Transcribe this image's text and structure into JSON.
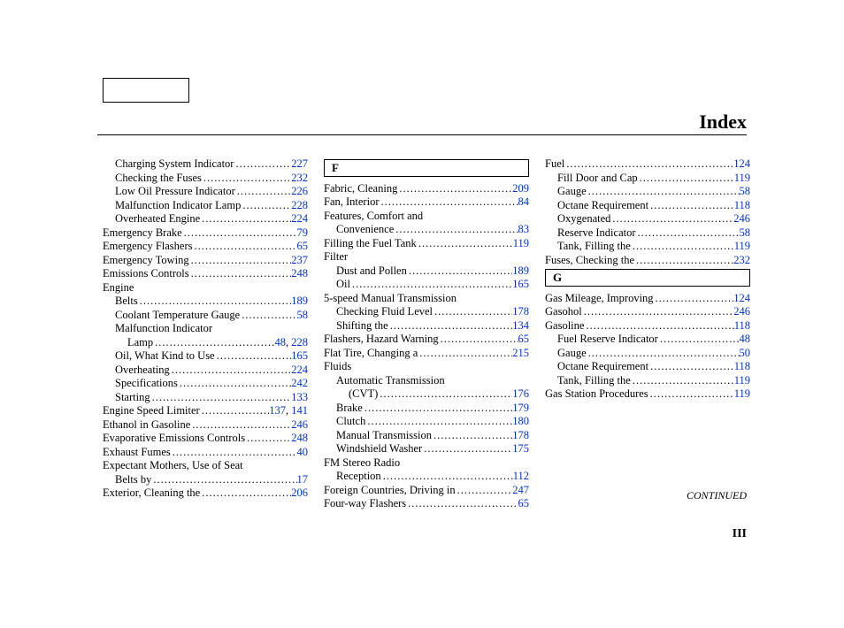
{
  "title": "Index",
  "continued": "CONTINUED",
  "page_number": "III",
  "colors": {
    "link": "#0033cc",
    "text": "#000000",
    "background": "#ffffff"
  },
  "columns": [
    {
      "items": [
        {
          "type": "entry",
          "indent": 1,
          "label": "Charging System Indicator",
          "pages": [
            "227"
          ]
        },
        {
          "type": "entry",
          "indent": 1,
          "label": "Checking the Fuses",
          "pages": [
            "232"
          ]
        },
        {
          "type": "entry",
          "indent": 1,
          "label": "Low Oil Pressure Indicator",
          "pages": [
            "226"
          ]
        },
        {
          "type": "entry",
          "indent": 1,
          "label": "Malfunction Indicator Lamp",
          "pages": [
            "228"
          ]
        },
        {
          "type": "entry",
          "indent": 1,
          "label": "Overheated Engine",
          "pages": [
            "224"
          ]
        },
        {
          "type": "entry",
          "indent": 0,
          "label": "Emergency Brake",
          "pages": [
            "79"
          ]
        },
        {
          "type": "entry",
          "indent": 0,
          "label": "Emergency Flashers",
          "pages": [
            "65"
          ]
        },
        {
          "type": "entry",
          "indent": 0,
          "label": "Emergency Towing",
          "pages": [
            "237"
          ]
        },
        {
          "type": "entry",
          "indent": 0,
          "label": "Emissions Controls",
          "pages": [
            "248"
          ]
        },
        {
          "type": "heading",
          "indent": 0,
          "label": "Engine"
        },
        {
          "type": "entry",
          "indent": 1,
          "label": "Belts",
          "pages": [
            "189"
          ]
        },
        {
          "type": "entry",
          "indent": 1,
          "label": "Coolant Temperature Gauge",
          "pages": [
            "58"
          ]
        },
        {
          "type": "heading",
          "indent": 1,
          "label": "Malfunction Indicator"
        },
        {
          "type": "entry",
          "indent": 2,
          "label": "Lamp",
          "pages": [
            "48",
            "228"
          ]
        },
        {
          "type": "entry",
          "indent": 1,
          "label": "Oil, What Kind to Use",
          "pages": [
            "165"
          ]
        },
        {
          "type": "entry",
          "indent": 1,
          "label": "Overheating",
          "pages": [
            "224"
          ]
        },
        {
          "type": "entry",
          "indent": 1,
          "label": "Specifications",
          "pages": [
            "242"
          ]
        },
        {
          "type": "entry",
          "indent": 1,
          "label": "Starting",
          "pages": [
            "133"
          ]
        },
        {
          "type": "entry",
          "indent": 0,
          "label": "Engine Speed Limiter",
          "pages": [
            "137",
            "141"
          ]
        },
        {
          "type": "entry",
          "indent": 0,
          "label": "Ethanol in Gasoline",
          "pages": [
            "246"
          ]
        },
        {
          "type": "entry",
          "indent": 0,
          "label": "Evaporative Emissions Controls",
          "pages": [
            "248"
          ]
        },
        {
          "type": "entry",
          "indent": 0,
          "label": "Exhaust Fumes",
          "pages": [
            "40"
          ]
        },
        {
          "type": "heading",
          "indent": 0,
          "label": "Expectant Mothers, Use of Seat"
        },
        {
          "type": "entry",
          "indent": 1,
          "label": "Belts by",
          "pages": [
            "17"
          ]
        },
        {
          "type": "entry",
          "indent": 0,
          "label": "Exterior, Cleaning the",
          "pages": [
            "206"
          ]
        }
      ]
    },
    {
      "items": [
        {
          "type": "letter",
          "label": "F"
        },
        {
          "type": "entry",
          "indent": 0,
          "label": "Fabric, Cleaning",
          "pages": [
            "209"
          ]
        },
        {
          "type": "entry",
          "indent": 0,
          "label": "Fan, Interior",
          "pages": [
            "84"
          ]
        },
        {
          "type": "heading",
          "indent": 0,
          "label": "Features, Comfort and"
        },
        {
          "type": "entry",
          "indent": 1,
          "label": "Convenience",
          "pages": [
            "83"
          ]
        },
        {
          "type": "entry",
          "indent": 0,
          "label": "Filling the Fuel Tank",
          "pages": [
            "119"
          ]
        },
        {
          "type": "heading",
          "indent": 0,
          "label": "Filter"
        },
        {
          "type": "entry",
          "indent": 1,
          "label": "Dust and Pollen",
          "pages": [
            "189"
          ]
        },
        {
          "type": "entry",
          "indent": 1,
          "label": "Oil",
          "pages": [
            "165"
          ]
        },
        {
          "type": "heading",
          "indent": 0,
          "label": "5-speed Manual Transmission"
        },
        {
          "type": "entry",
          "indent": 1,
          "label": "Checking Fluid Level",
          "pages": [
            "178"
          ]
        },
        {
          "type": "entry",
          "indent": 1,
          "label": "Shifting the",
          "pages": [
            "134"
          ]
        },
        {
          "type": "entry",
          "indent": 0,
          "label": "Flashers, Hazard Warning",
          "pages": [
            "65"
          ]
        },
        {
          "type": "entry",
          "indent": 0,
          "label": "Flat Tire, Changing a",
          "pages": [
            "215"
          ]
        },
        {
          "type": "heading",
          "indent": 0,
          "label": "Fluids"
        },
        {
          "type": "heading",
          "indent": 1,
          "label": "Automatic Transmission"
        },
        {
          "type": "entry",
          "indent": 2,
          "label": "(CVT)",
          "pages": [
            "176"
          ]
        },
        {
          "type": "entry",
          "indent": 1,
          "label": "Brake",
          "pages": [
            "179"
          ]
        },
        {
          "type": "entry",
          "indent": 1,
          "label": "Clutch",
          "pages": [
            "180"
          ]
        },
        {
          "type": "entry",
          "indent": 1,
          "label": "Manual Transmission",
          "pages": [
            "178"
          ]
        },
        {
          "type": "entry",
          "indent": 1,
          "label": "Windshield Washer",
          "pages": [
            "175"
          ]
        },
        {
          "type": "heading",
          "indent": 0,
          "label": "FM Stereo Radio"
        },
        {
          "type": "entry",
          "indent": 1,
          "label": "Reception",
          "pages": [
            "112"
          ]
        },
        {
          "type": "entry",
          "indent": 0,
          "label": "Foreign Countries, Driving in",
          "pages": [
            "247"
          ]
        },
        {
          "type": "entry",
          "indent": 0,
          "label": "Four-way Flashers",
          "pages": [
            "65"
          ]
        }
      ]
    },
    {
      "items": [
        {
          "type": "entry",
          "indent": 0,
          "label": "Fuel",
          "pages": [
            "124"
          ]
        },
        {
          "type": "entry",
          "indent": 1,
          "label": "Fill Door and Cap",
          "pages": [
            "119"
          ]
        },
        {
          "type": "entry",
          "indent": 1,
          "label": "Gauge",
          "pages": [
            "58"
          ]
        },
        {
          "type": "entry",
          "indent": 1,
          "label": "Octane Requirement",
          "pages": [
            "118"
          ]
        },
        {
          "type": "entry",
          "indent": 1,
          "label": "Oxygenated",
          "pages": [
            "246"
          ]
        },
        {
          "type": "entry",
          "indent": 1,
          "label": "Reserve Indicator",
          "pages": [
            "58"
          ]
        },
        {
          "type": "entry",
          "indent": 1,
          "label": "Tank, Filling the",
          "pages": [
            "119"
          ]
        },
        {
          "type": "entry",
          "indent": 0,
          "label": "Fuses, Checking the",
          "pages": [
            "232"
          ]
        },
        {
          "type": "letter",
          "label": "G"
        },
        {
          "type": "entry",
          "indent": 0,
          "label": "Gas Mileage, Improving",
          "pages": [
            "124"
          ]
        },
        {
          "type": "entry",
          "indent": 0,
          "label": "Gasohol",
          "pages": [
            "246"
          ]
        },
        {
          "type": "entry",
          "indent": 0,
          "label": "Gasoline",
          "pages": [
            "118"
          ]
        },
        {
          "type": "entry",
          "indent": 1,
          "label": "Fuel Reserve Indicator",
          "pages": [
            "48"
          ]
        },
        {
          "type": "entry",
          "indent": 1,
          "label": "Gauge",
          "pages": [
            "50"
          ]
        },
        {
          "type": "entry",
          "indent": 1,
          "label": "Octane Requirement",
          "pages": [
            "118"
          ]
        },
        {
          "type": "entry",
          "indent": 1,
          "label": "Tank, Filling the",
          "pages": [
            "119"
          ]
        },
        {
          "type": "entry",
          "indent": 0,
          "label": "Gas Station Procedures",
          "pages": [
            "119"
          ]
        }
      ]
    }
  ]
}
